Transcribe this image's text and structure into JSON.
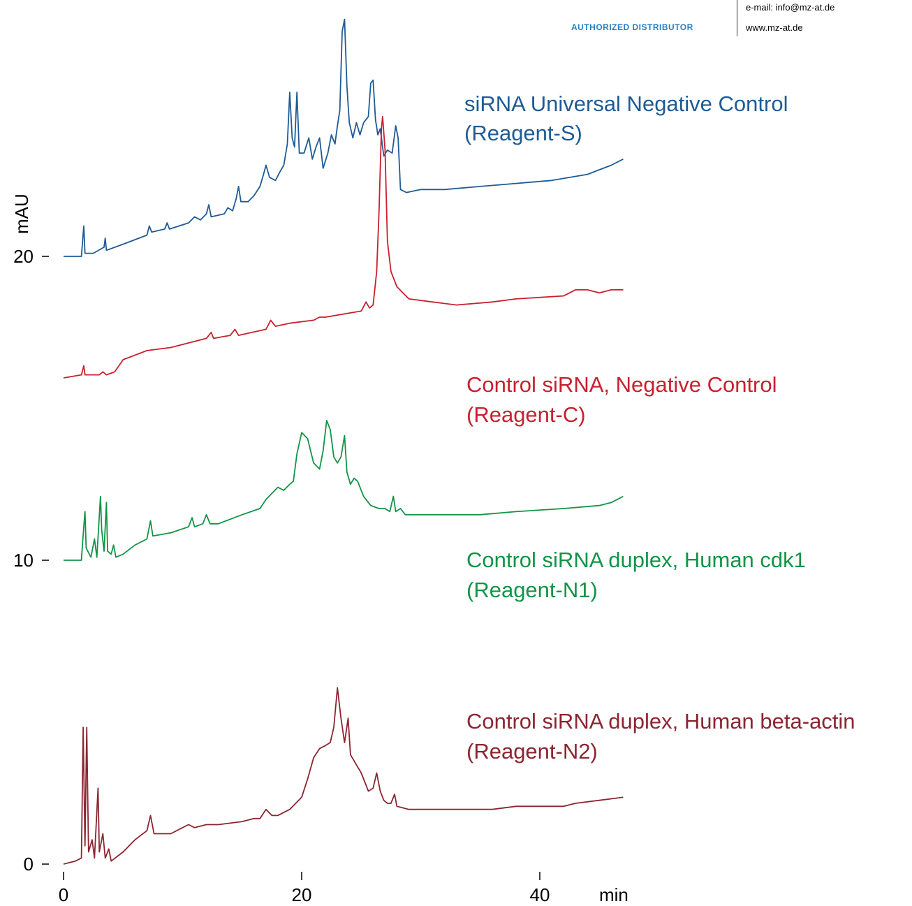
{
  "header": {
    "distributor": "AUTHORIZED DISTRIBUTOR",
    "email": "e-mail: info@mz-at.de",
    "website": "www.mz-at.de"
  },
  "chart_data": {
    "type": "line",
    "xlabel": "min",
    "ylabel": "mAU",
    "xlim": [
      0,
      47
    ],
    "ylim": [
      0,
      30
    ],
    "x_ticks": [
      0,
      20,
      40
    ],
    "y_ticks": [
      0,
      10,
      20
    ],
    "grid": false,
    "legend": "none",
    "series": [
      {
        "name": "siRNA Universal Negative Control",
        "sublabel": "(Reagent-S)",
        "color": "#1f5b94",
        "points": [
          [
            0,
            20.0
          ],
          [
            1.5,
            20.0
          ],
          [
            1.7,
            21.0
          ],
          [
            1.8,
            20.1
          ],
          [
            2.5,
            20.1
          ],
          [
            3.4,
            20.3
          ],
          [
            3.5,
            20.6
          ],
          [
            3.6,
            20.2
          ],
          [
            5,
            20.4
          ],
          [
            7,
            20.7
          ],
          [
            7.2,
            21.0
          ],
          [
            7.4,
            20.8
          ],
          [
            8.5,
            20.9
          ],
          [
            8.7,
            21.1
          ],
          [
            8.9,
            20.9
          ],
          [
            10.5,
            21.1
          ],
          [
            11,
            21.3
          ],
          [
            11.5,
            21.2
          ],
          [
            12,
            21.4
          ],
          [
            12.2,
            21.7
          ],
          [
            12.4,
            21.3
          ],
          [
            13.5,
            21.4
          ],
          [
            13.8,
            21.6
          ],
          [
            14.2,
            21.5
          ],
          [
            14.5,
            21.9
          ],
          [
            14.7,
            22.3
          ],
          [
            14.9,
            21.8
          ],
          [
            15.5,
            21.8
          ],
          [
            16,
            22.0
          ],
          [
            16.5,
            22.3
          ],
          [
            16.8,
            22.7
          ],
          [
            17.0,
            23.0
          ],
          [
            17.3,
            22.6
          ],
          [
            17.8,
            22.5
          ],
          [
            18.2,
            22.8
          ],
          [
            18.5,
            23.0
          ],
          [
            18.8,
            23.7
          ],
          [
            19.0,
            25.4
          ],
          [
            19.2,
            23.9
          ],
          [
            19.4,
            23.6
          ],
          [
            19.6,
            25.4
          ],
          [
            19.8,
            23.4
          ],
          [
            20.2,
            23.4
          ],
          [
            20.6,
            23.9
          ],
          [
            20.9,
            23.2
          ],
          [
            21.2,
            23.6
          ],
          [
            21.5,
            23.9
          ],
          [
            21.8,
            22.9
          ],
          [
            22.2,
            23.4
          ],
          [
            22.5,
            24.0
          ],
          [
            22.8,
            23.7
          ],
          [
            23.0,
            24.3
          ],
          [
            23.2,
            24.8
          ],
          [
            23.4,
            27.4
          ],
          [
            23.6,
            27.8
          ],
          [
            23.8,
            25.6
          ],
          [
            24.0,
            24.4
          ],
          [
            24.3,
            23.9
          ],
          [
            24.6,
            24.4
          ],
          [
            24.9,
            24.0
          ],
          [
            25.2,
            24.4
          ],
          [
            25.6,
            24.6
          ],
          [
            25.8,
            25.7
          ],
          [
            26.0,
            25.8
          ],
          [
            26.2,
            24.5
          ],
          [
            26.4,
            24.0
          ],
          [
            26.6,
            24.2
          ],
          [
            26.9,
            23.3
          ],
          [
            27.2,
            23.5
          ],
          [
            27.6,
            23.4
          ],
          [
            27.9,
            24.3
          ],
          [
            28.1,
            23.9
          ],
          [
            28.3,
            22.2
          ],
          [
            28.8,
            22.1
          ],
          [
            30,
            22.2
          ],
          [
            32,
            22.2
          ],
          [
            35,
            22.3
          ],
          [
            38,
            22.4
          ],
          [
            41,
            22.5
          ],
          [
            44,
            22.7
          ],
          [
            46,
            23.0
          ],
          [
            47,
            23.2
          ]
        ]
      },
      {
        "name": "Control siRNA, Negative Control",
        "sublabel": "(Reagent-C)",
        "color": "#c8202f",
        "points": [
          [
            0,
            16.0
          ],
          [
            1.5,
            16.1
          ],
          [
            1.7,
            16.4
          ],
          [
            1.8,
            16.1
          ],
          [
            3,
            16.1
          ],
          [
            3.3,
            16.2
          ],
          [
            3.6,
            16.1
          ],
          [
            4.3,
            16.2
          ],
          [
            5,
            16.6
          ],
          [
            7,
            16.9
          ],
          [
            9,
            17.0
          ],
          [
            10,
            17.1
          ],
          [
            12,
            17.3
          ],
          [
            12.4,
            17.5
          ],
          [
            12.6,
            17.3
          ],
          [
            14,
            17.4
          ],
          [
            14.4,
            17.6
          ],
          [
            14.7,
            17.4
          ],
          [
            17,
            17.6
          ],
          [
            17.4,
            17.9
          ],
          [
            17.8,
            17.7
          ],
          [
            19,
            17.8
          ],
          [
            21,
            17.9
          ],
          [
            21.5,
            18.0
          ],
          [
            22,
            18.0
          ],
          [
            25,
            18.2
          ],
          [
            25.4,
            18.5
          ],
          [
            25.7,
            18.3
          ],
          [
            26,
            18.4
          ],
          [
            26.3,
            19.5
          ],
          [
            26.5,
            21.5
          ],
          [
            26.7,
            24.2
          ],
          [
            26.8,
            24.6
          ],
          [
            27.0,
            23.5
          ],
          [
            27.2,
            20.5
          ],
          [
            27.5,
            19.5
          ],
          [
            28,
            19.0
          ],
          [
            29,
            18.6
          ],
          [
            31,
            18.5
          ],
          [
            33,
            18.4
          ],
          [
            36,
            18.5
          ],
          [
            38,
            18.6
          ],
          [
            42,
            18.7
          ],
          [
            43,
            18.9
          ],
          [
            44,
            18.9
          ],
          [
            45,
            18.8
          ],
          [
            46,
            18.9
          ],
          [
            47,
            18.9
          ]
        ]
      },
      {
        "name": "Control siRNA duplex, Human cdk1",
        "sublabel": "(Reagent-N1)",
        "color": "#129447",
        "points": [
          [
            0,
            10.0
          ],
          [
            1.5,
            10.0
          ],
          [
            1.6,
            10.6
          ],
          [
            1.8,
            11.6
          ],
          [
            1.9,
            10.4
          ],
          [
            2.3,
            10.1
          ],
          [
            2.6,
            10.7
          ],
          [
            2.8,
            10.1
          ],
          [
            3.1,
            12.1
          ],
          [
            3.2,
            11.0
          ],
          [
            3.4,
            10.3
          ],
          [
            3.6,
            11.9
          ],
          [
            3.7,
            10.3
          ],
          [
            4.0,
            10.2
          ],
          [
            4.2,
            10.5
          ],
          [
            4.4,
            10.1
          ],
          [
            5,
            10.2
          ],
          [
            6,
            10.5
          ],
          [
            7,
            10.7
          ],
          [
            7.3,
            11.3
          ],
          [
            7.5,
            10.8
          ],
          [
            9,
            10.9
          ],
          [
            10.5,
            11.1
          ],
          [
            10.8,
            11.4
          ],
          [
            11,
            11.1
          ],
          [
            11.7,
            11.2
          ],
          [
            12.0,
            11.5
          ],
          [
            12.3,
            11.2
          ],
          [
            13,
            11.2
          ],
          [
            15,
            11.5
          ],
          [
            16.5,
            11.7
          ],
          [
            17,
            12.0
          ],
          [
            17.5,
            12.2
          ],
          [
            18,
            12.4
          ],
          [
            18.5,
            12.3
          ],
          [
            19,
            12.5
          ],
          [
            19.3,
            12.6
          ],
          [
            19.6,
            13.5
          ],
          [
            20.0,
            14.2
          ],
          [
            20.5,
            14.0
          ],
          [
            21,
            13.2
          ],
          [
            21.5,
            13.0
          ],
          [
            21.8,
            13.6
          ],
          [
            22.1,
            14.6
          ],
          [
            22.4,
            14.3
          ],
          [
            22.7,
            13.4
          ],
          [
            23.0,
            13.2
          ],
          [
            23.3,
            13.4
          ],
          [
            23.6,
            14.1
          ],
          [
            23.8,
            12.9
          ],
          [
            24.1,
            12.5
          ],
          [
            24.4,
            12.7
          ],
          [
            24.7,
            12.6
          ],
          [
            25.2,
            12.1
          ],
          [
            25.8,
            11.8
          ],
          [
            26.5,
            11.7
          ],
          [
            27.0,
            11.7
          ],
          [
            27.4,
            11.6
          ],
          [
            27.7,
            12.1
          ],
          [
            27.9,
            11.6
          ],
          [
            28.3,
            11.7
          ],
          [
            28.7,
            11.5
          ],
          [
            30,
            11.5
          ],
          [
            32,
            11.5
          ],
          [
            35,
            11.5
          ],
          [
            38,
            11.6
          ],
          [
            42,
            11.7
          ],
          [
            45,
            11.8
          ],
          [
            46,
            11.9
          ],
          [
            47,
            12.1
          ]
        ]
      },
      {
        "name": "Control siRNA duplex, Human beta-actin",
        "sublabel": "(Reagent-N2)",
        "color": "#8b2631",
        "points": [
          [
            0,
            0.0
          ],
          [
            1,
            0.1
          ],
          [
            1.5,
            0.2
          ],
          [
            1.65,
            4.5
          ],
          [
            1.8,
            0.6
          ],
          [
            1.95,
            4.5
          ],
          [
            2.1,
            0.4
          ],
          [
            2.4,
            0.8
          ],
          [
            2.6,
            0.2
          ],
          [
            2.9,
            2.5
          ],
          [
            3.0,
            0.4
          ],
          [
            3.3,
            1.0
          ],
          [
            3.5,
            0.2
          ],
          [
            3.8,
            0.5
          ],
          [
            4.0,
            0.1
          ],
          [
            5,
            0.4
          ],
          [
            6,
            0.8
          ],
          [
            7,
            1.1
          ],
          [
            7.3,
            1.6
          ],
          [
            7.6,
            1.0
          ],
          [
            9,
            1.0
          ],
          [
            10.5,
            1.3
          ],
          [
            11,
            1.2
          ],
          [
            12,
            1.3
          ],
          [
            13,
            1.3
          ],
          [
            15,
            1.4
          ],
          [
            16,
            1.5
          ],
          [
            16.5,
            1.5
          ],
          [
            17,
            1.8
          ],
          [
            17.5,
            1.6
          ],
          [
            18,
            1.6
          ],
          [
            19,
            1.8
          ],
          [
            20,
            2.2
          ],
          [
            20.5,
            2.8
          ],
          [
            21,
            3.5
          ],
          [
            21.5,
            3.8
          ],
          [
            22,
            3.9
          ],
          [
            22.4,
            4.0
          ],
          [
            22.7,
            4.5
          ],
          [
            23.0,
            5.8
          ],
          [
            23.3,
            4.8
          ],
          [
            23.6,
            4.0
          ],
          [
            23.9,
            4.8
          ],
          [
            24.1,
            3.6
          ],
          [
            24.4,
            3.4
          ],
          [
            24.7,
            3.2
          ],
          [
            25.0,
            3.0
          ],
          [
            25.3,
            2.7
          ],
          [
            25.6,
            2.4
          ],
          [
            26.0,
            2.5
          ],
          [
            26.3,
            3.0
          ],
          [
            26.6,
            2.4
          ],
          [
            26.9,
            2.1
          ],
          [
            27.2,
            2.0
          ],
          [
            27.5,
            2.0
          ],
          [
            27.8,
            2.3
          ],
          [
            28.0,
            1.9
          ],
          [
            29,
            1.8
          ],
          [
            31,
            1.8
          ],
          [
            33,
            1.8
          ],
          [
            36,
            1.8
          ],
          [
            38,
            1.9
          ],
          [
            40,
            1.9
          ],
          [
            42,
            1.9
          ],
          [
            43,
            2.0
          ],
          [
            45,
            2.1
          ],
          [
            47,
            2.2
          ]
        ]
      }
    ]
  }
}
